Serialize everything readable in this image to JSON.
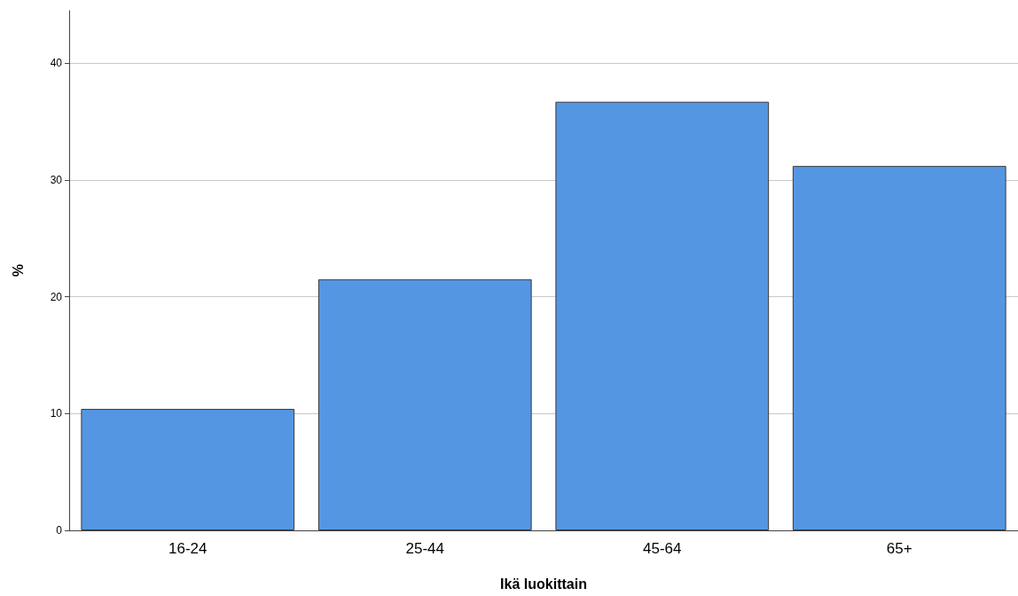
{
  "chart_data": {
    "type": "bar",
    "xlabel": "Ikä luokittain",
    "ylabel": "%",
    "categories": [
      "16-24",
      "25-44",
      "45-64",
      "65+"
    ],
    "values": [
      10.4,
      21.5,
      36.7,
      31.2
    ],
    "color": "#5596e3",
    "ylim": [
      0,
      44.5
    ],
    "yticks": [
      0,
      10,
      20,
      30,
      40
    ],
    "grid": "y"
  }
}
